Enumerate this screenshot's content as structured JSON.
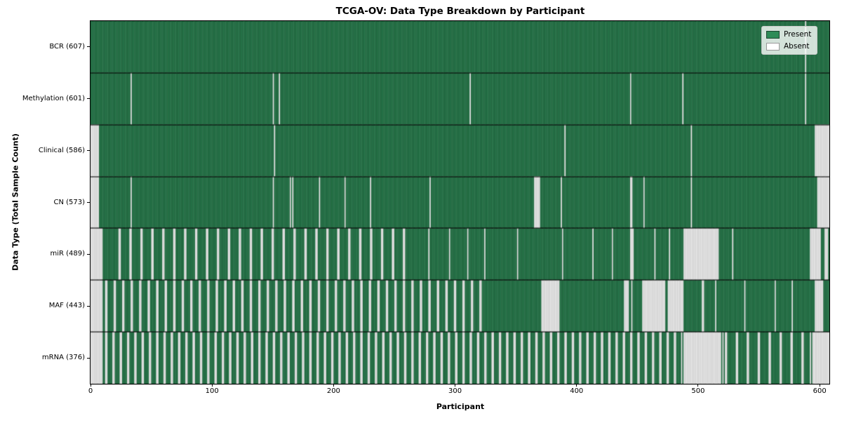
{
  "figure": {
    "title": "TCGA-OV: Data Type Breakdown by Participant",
    "xlabel": "Participant",
    "ylabel": "Data Type (Total Sample Count)"
  },
  "legend": {
    "present": "Present",
    "absent": "Absent"
  },
  "colors": {
    "present": "#2e8b57",
    "absent": "#ffffff",
    "present_edge": "rgba(0,0,0,0.45)",
    "absent_edge": "rgba(90,90,90,0.45)",
    "separator": "#000000"
  },
  "chart_data": {
    "type": "heatmap",
    "title": "TCGA-OV: Data Type Breakdown by Participant",
    "xlabel": "Participant",
    "ylabel": "Data Type (Total Sample Count)",
    "x_ticks": [
      0,
      100,
      200,
      300,
      400,
      500,
      600
    ],
    "n_participants": 608,
    "cell_states": [
      "Present",
      "Absent"
    ],
    "legend_entries": [
      {
        "label": "Present",
        "color": "#2e8b57"
      },
      {
        "label": "Absent",
        "color": "#ffffff"
      }
    ],
    "rows": [
      {
        "label": "BCR (607)",
        "data_type": "BCR",
        "present_count": 607,
        "absent": [
          588
        ]
      },
      {
        "label": "Methylation (601)",
        "data_type": "Methylation",
        "present_count": 601,
        "absent": [
          33,
          150,
          155,
          312,
          444,
          487,
          588
        ]
      },
      {
        "label": "Clinical (586)",
        "data_type": "Clinical",
        "present_count": 586,
        "absent": [
          [
            0,
            6
          ],
          151,
          390,
          494,
          [
            596,
            607
          ]
        ]
      },
      {
        "label": "CN (573)",
        "data_type": "CN",
        "present_count": 573,
        "absent": [
          [
            0,
            6
          ],
          33,
          150,
          164,
          166,
          188,
          209,
          230,
          279,
          [
            365,
            369
          ],
          387,
          [
            444,
            445
          ],
          455,
          494,
          [
            598,
            607
          ]
        ]
      },
      {
        "label": "miR (489)",
        "data_type": "miR",
        "present_count": 489,
        "absent": [
          [
            0,
            9
          ],
          [
            23,
            24
          ],
          [
            32,
            33
          ],
          [
            41,
            42
          ],
          [
            50,
            51
          ],
          [
            59,
            60
          ],
          [
            68,
            69
          ],
          [
            77,
            78
          ],
          [
            86,
            87
          ],
          [
            95,
            96
          ],
          [
            104,
            105
          ],
          [
            113,
            114
          ],
          [
            122,
            123
          ],
          [
            131,
            132
          ],
          [
            140,
            141
          ],
          [
            149,
            150
          ],
          [
            158,
            159
          ],
          [
            167,
            168
          ],
          [
            176,
            177
          ],
          [
            185,
            186
          ],
          [
            194,
            195
          ],
          [
            203,
            204
          ],
          [
            212,
            213
          ],
          [
            221,
            222
          ],
          [
            230,
            231
          ],
          [
            239,
            240
          ],
          [
            248,
            249
          ],
          [
            257,
            258
          ],
          278,
          295,
          310,
          324,
          351,
          388,
          413,
          429,
          [
            444,
            446
          ],
          464,
          476,
          [
            488,
            516
          ],
          528,
          [
            592,
            600
          ],
          [
            604,
            606
          ]
        ]
      },
      {
        "label": "MAF (443)",
        "data_type": "MAF",
        "present_count": 443,
        "absent": [
          [
            0,
            9
          ],
          [
            12,
            13
          ],
          [
            19,
            20
          ],
          [
            26,
            27
          ],
          [
            33,
            34
          ],
          [
            40,
            41
          ],
          [
            47,
            48
          ],
          [
            54,
            55
          ],
          [
            61,
            62
          ],
          [
            68,
            69
          ],
          [
            75,
            76
          ],
          [
            82,
            83
          ],
          [
            89,
            90
          ],
          [
            96,
            97
          ],
          [
            103,
            104
          ],
          [
            110,
            111
          ],
          [
            117,
            118
          ],
          [
            124,
            125
          ],
          [
            131,
            132
          ],
          [
            138,
            139
          ],
          [
            145,
            146
          ],
          [
            152,
            153
          ],
          [
            159,
            160
          ],
          [
            166,
            167
          ],
          [
            173,
            174
          ],
          [
            180,
            181
          ],
          [
            187,
            188
          ],
          [
            194,
            195
          ],
          [
            201,
            202
          ],
          [
            208,
            209
          ],
          [
            215,
            216
          ],
          [
            222,
            223
          ],
          [
            229,
            230
          ],
          [
            236,
            237
          ],
          [
            243,
            244
          ],
          [
            250,
            251
          ],
          [
            257,
            258
          ],
          [
            264,
            265
          ],
          [
            271,
            272
          ],
          [
            278,
            279
          ],
          [
            285,
            286
          ],
          [
            292,
            293
          ],
          [
            299,
            300
          ],
          [
            306,
            307
          ],
          [
            313,
            314
          ],
          [
            320,
            321
          ],
          [
            371,
            385
          ],
          [
            439,
            442
          ],
          445,
          [
            454,
            472
          ],
          [
            475,
            487
          ],
          [
            503,
            504
          ],
          514,
          538,
          563,
          577,
          [
            596,
            602
          ]
        ]
      },
      {
        "label": "mRNA (376)",
        "data_type": "mRNA",
        "present_count": 376,
        "absent": [
          [
            0,
            9
          ],
          [
            12,
            13
          ],
          [
            18,
            19
          ],
          [
            24,
            25
          ],
          [
            30,
            31
          ],
          [
            36,
            37
          ],
          [
            42,
            43
          ],
          [
            48,
            49
          ],
          [
            54,
            55
          ],
          [
            60,
            61
          ],
          [
            66,
            67
          ],
          [
            72,
            73
          ],
          [
            78,
            79
          ],
          [
            84,
            85
          ],
          [
            90,
            91
          ],
          [
            96,
            97
          ],
          [
            102,
            103
          ],
          [
            108,
            109
          ],
          [
            114,
            115
          ],
          [
            120,
            121
          ],
          [
            126,
            127
          ],
          [
            132,
            133
          ],
          [
            138,
            139
          ],
          [
            144,
            145
          ],
          [
            150,
            151
          ],
          [
            156,
            157
          ],
          [
            162,
            163
          ],
          [
            168,
            169
          ],
          [
            174,
            175
          ],
          [
            180,
            181
          ],
          [
            186,
            187
          ],
          [
            192,
            193
          ],
          [
            198,
            199
          ],
          [
            204,
            205
          ],
          [
            210,
            211
          ],
          [
            216,
            217
          ],
          [
            222,
            223
          ],
          [
            228,
            229
          ],
          [
            234,
            235
          ],
          [
            240,
            241
          ],
          [
            246,
            247
          ],
          [
            252,
            253
          ],
          [
            258,
            259
          ],
          [
            264,
            265
          ],
          [
            270,
            271
          ],
          [
            276,
            277
          ],
          [
            282,
            283
          ],
          [
            288,
            289
          ],
          [
            294,
            295
          ],
          [
            300,
            301
          ],
          [
            306,
            307
          ],
          [
            312,
            313
          ],
          [
            318,
            319
          ],
          [
            324,
            325
          ],
          [
            330,
            331
          ],
          [
            336,
            337
          ],
          [
            342,
            343
          ],
          [
            348,
            349
          ],
          [
            354,
            355
          ],
          [
            360,
            361
          ],
          [
            366,
            367
          ],
          [
            372,
            373
          ],
          [
            378,
            379
          ],
          [
            384,
            385
          ],
          [
            390,
            391
          ],
          [
            396,
            397
          ],
          [
            402,
            403
          ],
          [
            408,
            409
          ],
          [
            414,
            415
          ],
          [
            420,
            421
          ],
          [
            426,
            427
          ],
          [
            432,
            433
          ],
          [
            438,
            439
          ],
          [
            444,
            445
          ],
          [
            450,
            451
          ],
          [
            456,
            457
          ],
          [
            462,
            463
          ],
          [
            468,
            469
          ],
          [
            474,
            475
          ],
          [
            480,
            481
          ],
          486,
          [
            488,
            518
          ],
          520,
          [
            522,
            523
          ],
          [
            531,
            532
          ],
          [
            540,
            541
          ],
          [
            549,
            550
          ],
          [
            558,
            559
          ],
          [
            567,
            568
          ],
          [
            576,
            577
          ],
          [
            585,
            586
          ],
          592,
          [
            594,
            607
          ]
        ]
      }
    ]
  }
}
